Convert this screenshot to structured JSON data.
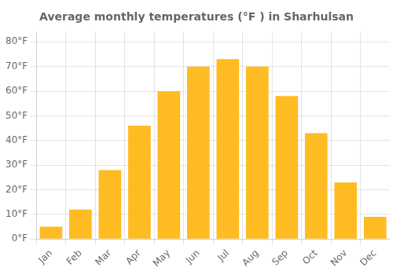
{
  "chart_data": {
    "type": "bar",
    "title": "Average monthly temperatures (°F ) in Sharhulsan",
    "categories": [
      "Jan",
      "Feb",
      "Mar",
      "Apr",
      "May",
      "Jun",
      "Jul",
      "Aug",
      "Sep",
      "Oct",
      "Nov",
      "Dec"
    ],
    "values": [
      5,
      12,
      28,
      46,
      60,
      70,
      73,
      70,
      58,
      43,
      23,
      9
    ],
    "color": "#FFBB22",
    "ylim": [
      0,
      84
    ],
    "yticks": [
      {
        "value": 0,
        "label": "0°F"
      },
      {
        "value": 10,
        "label": "10°F"
      },
      {
        "value": 20,
        "label": "20°F"
      },
      {
        "value": 30,
        "label": "30°F"
      },
      {
        "value": 40,
        "label": "40°F"
      },
      {
        "value": 50,
        "label": "50°F"
      },
      {
        "value": 60,
        "label": "60°F"
      },
      {
        "value": 70,
        "label": "70°F"
      },
      {
        "value": 80,
        "label": "80°F"
      }
    ],
    "grid": true
  }
}
